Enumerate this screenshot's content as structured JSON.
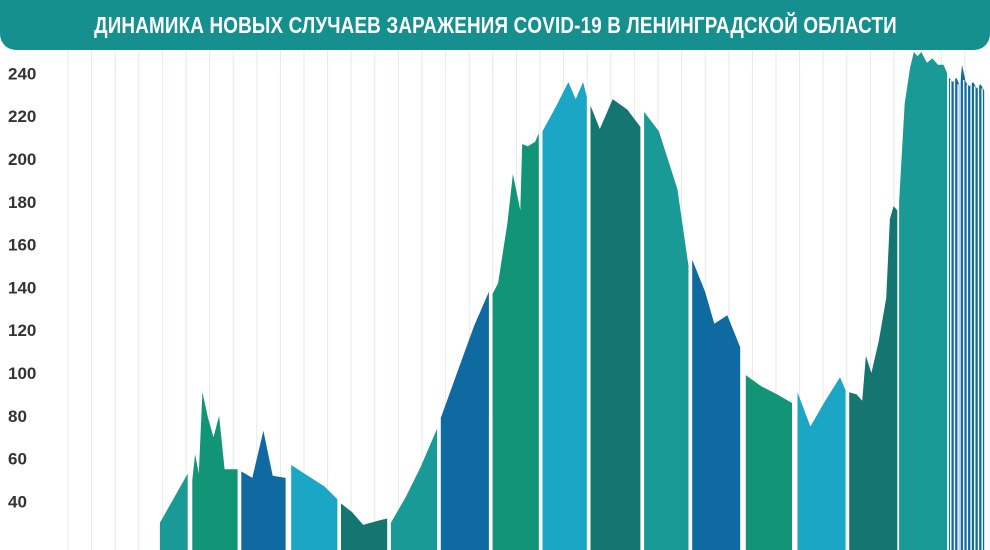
{
  "header": {
    "title": "ДИНАМИКА НОВЫХ СЛУЧАЕВ ЗАРАЖЕНИЯ COVID-19 В ЛЕНИНГРАДСКОЙ ОБЛАСТИ"
  },
  "chart_data": {
    "type": "area",
    "title": "ДИНАМИКА НОВЫХ СЛУЧАЕВ ЗАРАЖЕНИЯ COVID-19 В ЛЕНИНГРАДСКОЙ ОБЛАСТИ",
    "xlabel": "",
    "ylabel": "",
    "y_ticks": [
      40,
      60,
      80,
      100,
      120,
      140,
      160,
      180,
      200,
      220,
      240
    ],
    "ylim": [
      30,
      250
    ],
    "grid": "vertical",
    "legend": "none",
    "x_index_range": [
      0,
      100
    ],
    "series": [
      {
        "values": [
          [
            0,
            30
          ]
        ]
      }
    ],
    "colors": [
      "#0f7a6f",
      "#1a9a96",
      "#0e6aa0",
      "#1ba6c6",
      "#129476",
      "#147571"
    ],
    "segments": [
      {
        "color": "#1a9a96",
        "points": [
          [
            10.6,
            30
          ],
          [
            13.6,
            53
          ]
        ]
      },
      {
        "color": "#129476",
        "points": [
          [
            14.1,
            50
          ],
          [
            14.4,
            62
          ],
          [
            14.8,
            53
          ],
          [
            15.2,
            91
          ],
          [
            15.8,
            79
          ],
          [
            16.4,
            70
          ],
          [
            17.0,
            80
          ],
          [
            17.6,
            55
          ],
          [
            19.0,
            55
          ]
        ]
      },
      {
        "color": "#0e6aa0",
        "points": [
          [
            19.4,
            54
          ],
          [
            20.6,
            51
          ],
          [
            21.8,
            73
          ],
          [
            22.8,
            52
          ],
          [
            24.2,
            51
          ]
        ]
      },
      {
        "color": "#1ba6c6",
        "points": [
          [
            24.8,
            57
          ],
          [
            26.6,
            52
          ],
          [
            28.4,
            47
          ],
          [
            29.8,
            41
          ]
        ]
      },
      {
        "color": "#147571",
        "points": [
          [
            30.2,
            39
          ],
          [
            31.4,
            35
          ],
          [
            32.6,
            29
          ],
          [
            34.2,
            31
          ],
          [
            35.2,
            32
          ]
        ]
      },
      {
        "color": "#1a9a96",
        "points": [
          [
            35.6,
            30
          ],
          [
            37.2,
            42
          ],
          [
            38.8,
            56
          ],
          [
            40.6,
            74
          ]
        ]
      },
      {
        "color": "#0e6aa0",
        "points": [
          [
            41.0,
            79
          ],
          [
            43.0,
            103
          ],
          [
            44.6,
            122
          ],
          [
            46.2,
            138
          ]
        ]
      },
      {
        "color": "#129476",
        "points": [
          [
            46.6,
            137
          ],
          [
            47.2,
            142
          ],
          [
            48.2,
            170
          ],
          [
            48.8,
            193
          ],
          [
            49.6,
            176
          ],
          [
            49.8,
            207
          ],
          [
            50.4,
            206
          ],
          [
            51.2,
            208
          ],
          [
            51.6,
            212
          ]
        ]
      },
      {
        "color": "#1ba6c6",
        "points": [
          [
            52.0,
            213
          ],
          [
            53.4,
            224
          ],
          [
            54.8,
            236
          ],
          [
            55.6,
            228
          ],
          [
            56.4,
            236
          ],
          [
            56.8,
            229
          ]
        ]
      },
      {
        "color": "#147571",
        "points": [
          [
            57.2,
            225
          ],
          [
            58.2,
            214
          ],
          [
            59.6,
            228
          ],
          [
            61.2,
            223
          ],
          [
            62.6,
            215
          ]
        ]
      },
      {
        "color": "#1a9a96",
        "points": [
          [
            63.0,
            222
          ],
          [
            64.6,
            213
          ],
          [
            66.6,
            186
          ],
          [
            67.8,
            150
          ]
        ]
      },
      {
        "color": "#0e6aa0",
        "points": [
          [
            68.2,
            153
          ],
          [
            69.6,
            138
          ],
          [
            70.6,
            123
          ],
          [
            72.0,
            127
          ],
          [
            73.4,
            112
          ]
        ]
      },
      {
        "color": "#129476",
        "points": [
          [
            74.0,
            99
          ],
          [
            75.6,
            94
          ],
          [
            77.4,
            90
          ],
          [
            79.0,
            86
          ]
        ]
      },
      {
        "color": "#1ba6c6",
        "points": [
          [
            79.6,
            91
          ],
          [
            81.0,
            75
          ],
          [
            82.6,
            87
          ],
          [
            84.2,
            98
          ],
          [
            84.8,
            92
          ]
        ]
      },
      {
        "color": "#147571",
        "points": [
          [
            85.2,
            91
          ],
          [
            86.0,
            90
          ],
          [
            86.6,
            87
          ],
          [
            87.0,
            108
          ],
          [
            87.6,
            100
          ],
          [
            88.4,
            115
          ],
          [
            89.2,
            135
          ],
          [
            89.6,
            172
          ],
          [
            90.0,
            178
          ],
          [
            90.4,
            176
          ]
        ]
      },
      {
        "color": "#1a9a96",
        "points": [
          [
            90.6,
            180
          ],
          [
            91.2,
            226
          ],
          [
            91.8,
            243
          ],
          [
            92.2,
            250
          ],
          [
            92.6,
            248
          ],
          [
            93.0,
            250
          ],
          [
            93.6,
            245
          ],
          [
            94.2,
            247
          ],
          [
            94.8,
            244
          ],
          [
            95.4,
            244
          ],
          [
            95.8,
            240
          ]
        ]
      },
      {
        "color": "#0e6aa0",
        "points": [
          [
            96.0,
            238
          ],
          [
            96.4,
            236
          ],
          [
            96.8,
            238
          ],
          [
            97.2,
            234
          ],
          [
            97.4,
            244
          ],
          [
            97.8,
            236
          ],
          [
            98.2,
            234
          ],
          [
            98.6,
            236
          ],
          [
            99.0,
            233
          ],
          [
            99.4,
            235
          ],
          [
            99.8,
            232
          ]
        ]
      }
    ]
  }
}
